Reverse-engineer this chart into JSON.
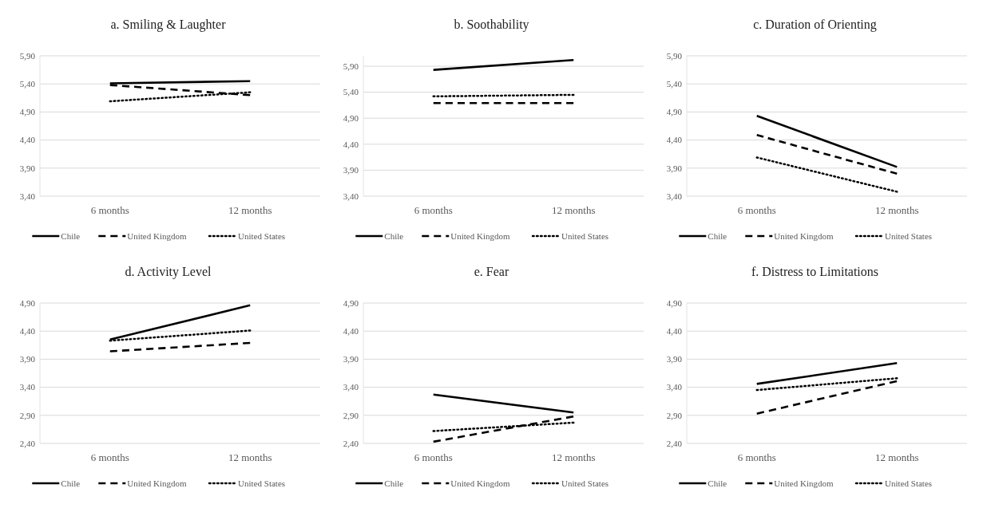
{
  "chart_data": [
    {
      "type": "line",
      "title": "a. Smiling & Laughter",
      "categories": [
        "6 months",
        "12 months"
      ],
      "ylim": [
        3.4,
        5.9
      ],
      "yticks": [
        {
          "value": 3.4,
          "label": "3,40"
        },
        {
          "value": 3.9,
          "label": "3,90"
        },
        {
          "value": 4.4,
          "label": "4,40"
        },
        {
          "value": 4.9,
          "label": "4,90"
        },
        {
          "value": 5.4,
          "label": "5,40"
        },
        {
          "value": 5.9,
          "label": "5,90"
        }
      ],
      "grid": "y",
      "legend": "bottom",
      "series": [
        {
          "name": "Chile",
          "color": "#000000",
          "line_style": "solid",
          "values": [
            5.41,
            5.45
          ]
        },
        {
          "name": "United Kingdom",
          "color": "#000000",
          "line_style": "dashed",
          "values": [
            5.38,
            5.2
          ]
        },
        {
          "name": "United States",
          "color": "#000000",
          "line_style": "dotted",
          "values": [
            5.09,
            5.25
          ]
        }
      ]
    },
    {
      "type": "line",
      "title": "b. Soothability",
      "categories": [
        "6 months",
        "12 months"
      ],
      "ylim": [
        3.4,
        6.1
      ],
      "yticks": [
        {
          "value": 3.4,
          "label": "3,40"
        },
        {
          "value": 3.9,
          "label": "3,90"
        },
        {
          "value": 4.4,
          "label": "4,40"
        },
        {
          "value": 4.9,
          "label": "4,90"
        },
        {
          "value": 5.4,
          "label": "5,40"
        },
        {
          "value": 5.9,
          "label": "5,90"
        }
      ],
      "grid": "y",
      "legend": "bottom",
      "series": [
        {
          "name": "Chile",
          "color": "#000000",
          "line_style": "solid",
          "values": [
            5.83,
            6.02
          ]
        },
        {
          "name": "United Kingdom",
          "color": "#000000",
          "line_style": "dashed",
          "values": [
            5.19,
            5.19
          ]
        },
        {
          "name": "United States",
          "color": "#000000",
          "line_style": "dotted",
          "values": [
            5.32,
            5.35
          ]
        }
      ]
    },
    {
      "type": "line",
      "title": "c. Duration of Orienting",
      "categories": [
        "6 months",
        "12 months"
      ],
      "ylim": [
        3.4,
        5.9
      ],
      "yticks": [
        {
          "value": 3.4,
          "label": "3,40"
        },
        {
          "value": 3.9,
          "label": "3,90"
        },
        {
          "value": 4.4,
          "label": "4,40"
        },
        {
          "value": 4.9,
          "label": "4,90"
        },
        {
          "value": 5.4,
          "label": "5,40"
        },
        {
          "value": 5.9,
          "label": "5,90"
        }
      ],
      "grid": "y",
      "legend": "bottom",
      "series": [
        {
          "name": "Chile",
          "color": "#000000",
          "line_style": "solid",
          "values": [
            4.83,
            3.92
          ]
        },
        {
          "name": "United Kingdom",
          "color": "#000000",
          "line_style": "dashed",
          "values": [
            4.49,
            3.8
          ]
        },
        {
          "name": "United States",
          "color": "#000000",
          "line_style": "dotted",
          "values": [
            4.09,
            3.48
          ]
        }
      ]
    },
    {
      "type": "line",
      "title": "d. Activity Level",
      "categories": [
        "6 months",
        "12 months"
      ],
      "ylim": [
        2.4,
        4.9
      ],
      "yticks": [
        {
          "value": 2.4,
          "label": "2,40"
        },
        {
          "value": 2.9,
          "label": "2,90"
        },
        {
          "value": 3.4,
          "label": "3,40"
        },
        {
          "value": 3.9,
          "label": "3,90"
        },
        {
          "value": 4.4,
          "label": "4,40"
        },
        {
          "value": 4.9,
          "label": "4,90"
        }
      ],
      "grid": "y",
      "legend": "bottom",
      "series": [
        {
          "name": "Chile",
          "color": "#000000",
          "line_style": "solid",
          "values": [
            4.25,
            4.86
          ]
        },
        {
          "name": "United Kingdom",
          "color": "#000000",
          "line_style": "dashed",
          "values": [
            4.04,
            4.19
          ]
        },
        {
          "name": "United States",
          "color": "#000000",
          "line_style": "dotted",
          "values": [
            4.23,
            4.41
          ]
        }
      ]
    },
    {
      "type": "line",
      "title": "e. Fear",
      "categories": [
        "6 months",
        "12 months"
      ],
      "ylim": [
        2.4,
        4.9
      ],
      "yticks": [
        {
          "value": 2.4,
          "label": "2,40"
        },
        {
          "value": 2.9,
          "label": "2,90"
        },
        {
          "value": 3.4,
          "label": "3,40"
        },
        {
          "value": 3.9,
          "label": "3,90"
        },
        {
          "value": 4.4,
          "label": "4,40"
        },
        {
          "value": 4.9,
          "label": "4,90"
        }
      ],
      "grid": "y",
      "legend": "bottom",
      "series": [
        {
          "name": "Chile",
          "color": "#000000",
          "line_style": "solid",
          "values": [
            3.27,
            2.95
          ]
        },
        {
          "name": "United Kingdom",
          "color": "#000000",
          "line_style": "dashed",
          "values": [
            2.43,
            2.88
          ]
        },
        {
          "name": "United States",
          "color": "#000000",
          "line_style": "dotted",
          "values": [
            2.62,
            2.77
          ]
        }
      ]
    },
    {
      "type": "line",
      "title": "f. Distress to Limitations",
      "categories": [
        "6 months",
        "12 months"
      ],
      "ylim": [
        2.4,
        4.9
      ],
      "yticks": [
        {
          "value": 2.4,
          "label": "2,40"
        },
        {
          "value": 2.9,
          "label": "2,90"
        },
        {
          "value": 3.4,
          "label": "3,40"
        },
        {
          "value": 3.9,
          "label": "3,90"
        },
        {
          "value": 4.4,
          "label": "4,40"
        },
        {
          "value": 4.9,
          "label": "4,90"
        }
      ],
      "grid": "y",
      "legend": "bottom",
      "series": [
        {
          "name": "Chile",
          "color": "#000000",
          "line_style": "solid",
          "values": [
            3.46,
            3.83
          ]
        },
        {
          "name": "United Kingdom",
          "color": "#000000",
          "line_style": "dashed",
          "values": [
            2.93,
            3.51
          ]
        },
        {
          "name": "United States",
          "color": "#000000",
          "line_style": "dotted",
          "values": [
            3.35,
            3.56
          ]
        }
      ]
    }
  ]
}
